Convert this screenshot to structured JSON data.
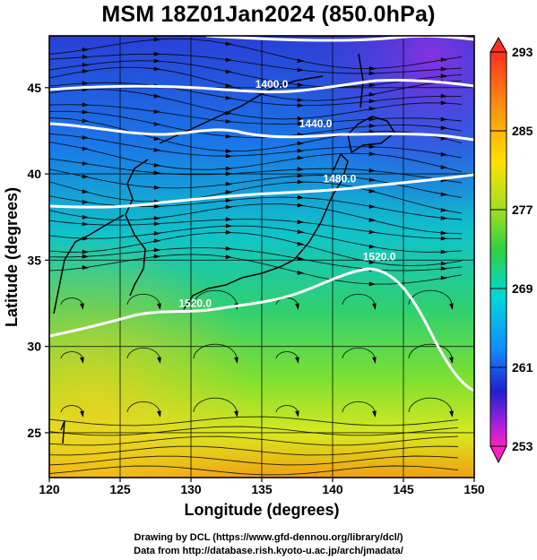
{
  "title": "MSM 18Z01Jan2024 (850.0hPa)",
  "xlabel": "Longitude (degrees)",
  "ylabel": "Latitude  (degrees)",
  "credit_line1": "Drawing by DCL (https://www.gfd-dennou.org/library/dcl/)",
  "credit_line2": "Data from http://database.rish.kyoto-u.ac.jp/arch/jmadata/",
  "map": {
    "lon_range": [
      120,
      150
    ],
    "lat_range": [
      22.4,
      48
    ],
    "lon_ticks": [
      "120",
      "125",
      "130",
      "135",
      "140",
      "145",
      "150"
    ],
    "lat_ticks": [
      "25",
      "30",
      "35",
      "40",
      "45"
    ],
    "lon_tick_values": [
      120,
      125,
      130,
      135,
      140,
      145,
      150
    ],
    "lat_tick_values": [
      25,
      30,
      35,
      40,
      45
    ],
    "contour_labels": [
      {
        "text": "1400.0",
        "lon": 135.7,
        "lat": 45.0
      },
      {
        "text": "1440.0",
        "lon": 138.8,
        "lat": 42.7
      },
      {
        "text": "1480.0",
        "lon": 140.5,
        "lat": 39.5
      },
      {
        "text": "1520.0",
        "lon": 143.3,
        "lat": 35.0
      },
      {
        "text": "1520.0",
        "lon": 130.3,
        "lat": 32.3
      }
    ],
    "colorbar": {
      "min": 253,
      "max": 293,
      "labels": [
        "293",
        "285",
        "277",
        "269",
        "261",
        "253"
      ],
      "label_values": [
        293,
        285,
        277,
        269,
        261,
        253
      ],
      "colors": [
        "#ff1493",
        "#a020f0",
        "#2020e0",
        "#00c8ff",
        "#30d030",
        "#ffff00",
        "#ff8c00",
        "#ff3020"
      ]
    }
  }
}
